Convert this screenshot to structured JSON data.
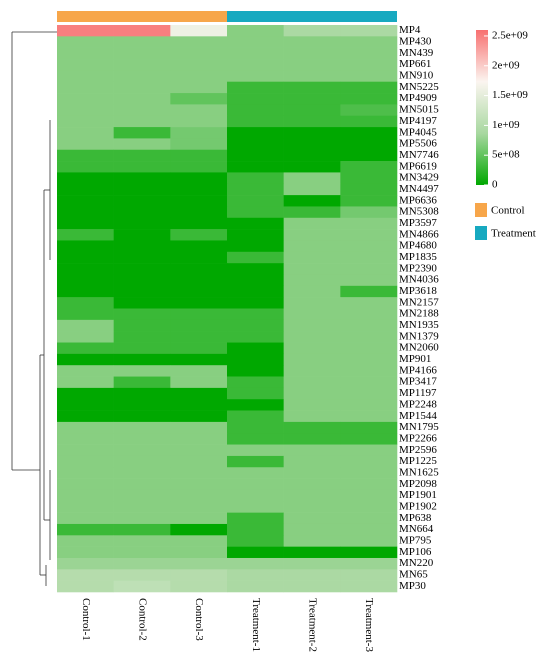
{
  "chart_data": {
    "type": "heatmap",
    "rows": [
      "MP4",
      "MP430",
      "MN439",
      "MP661",
      "MN910",
      "MN5225",
      "MP4909",
      "MN5015",
      "MP4197",
      "MP4045",
      "MP5506",
      "MN7746",
      "MP6619",
      "MN3429",
      "MN4497",
      "MP6636",
      "MN5308",
      "MP3597",
      "MN4866",
      "MP4680",
      "MP1835",
      "MP2390",
      "MN4036",
      "MP3618",
      "MN2157",
      "MN2188",
      "MN1935",
      "MN1379",
      "MN2060",
      "MP901",
      "MP4166",
      "MP3417",
      "MP1197",
      "MP2248",
      "MP1544",
      "MN1795",
      "MP2266",
      "MP2596",
      "MP1225",
      "MN1625",
      "MP2098",
      "MP1901",
      "MP1902",
      "MP638",
      "MN664",
      "MP795",
      "MP106",
      "MN220",
      "MN65",
      "MP30"
    ],
    "columns": [
      "Control-1",
      "Control-2",
      "Control-3",
      "Treatment-1",
      "Treatment-2",
      "Treatment-3"
    ],
    "values": [
      [
        2500000000,
        2500000000,
        1600000000,
        700000000,
        900000000,
        900000000
      ],
      [
        700000000,
        700000000,
        700000000,
        700000000,
        700000000,
        700000000
      ],
      [
        700000000,
        700000000,
        700000000,
        700000000,
        700000000,
        700000000
      ],
      [
        700000000,
        700000000,
        700000000,
        700000000,
        700000000,
        700000000
      ],
      [
        700000000,
        700000000,
        700000000,
        700000000,
        700000000,
        700000000
      ],
      [
        700000000,
        700000000,
        700000000,
        300000000,
        300000000,
        300000000
      ],
      [
        700000000,
        700000000,
        500000000,
        300000000,
        300000000,
        300000000
      ],
      [
        700000000,
        700000000,
        700000000,
        300000000,
        300000000,
        400000000
      ],
      [
        700000000,
        700000000,
        700000000,
        300000000,
        300000000,
        300000000
      ],
      [
        700000000,
        300000000,
        600000000,
        0,
        0,
        0
      ],
      [
        700000000,
        700000000,
        600000000,
        0,
        0,
        0
      ],
      [
        300000000,
        300000000,
        300000000,
        0,
        0,
        0
      ],
      [
        300000000,
        300000000,
        300000000,
        0,
        0,
        300000000
      ],
      [
        0,
        0,
        0,
        300000000,
        700000000,
        300000000
      ],
      [
        0,
        0,
        0,
        300000000,
        700000000,
        300000000
      ],
      [
        0,
        0,
        0,
        300000000,
        0,
        300000000
      ],
      [
        0,
        0,
        0,
        300000000,
        300000000,
        600000000
      ],
      [
        0,
        0,
        0,
        0,
        700000000,
        700000000
      ],
      [
        300000000,
        0,
        300000000,
        0,
        700000000,
        700000000
      ],
      [
        0,
        0,
        0,
        0,
        700000000,
        700000000
      ],
      [
        0,
        0,
        0,
        300000000,
        700000000,
        700000000
      ],
      [
        0,
        0,
        0,
        0,
        700000000,
        700000000
      ],
      [
        0,
        0,
        0,
        0,
        700000000,
        700000000
      ],
      [
        0,
        0,
        0,
        0,
        700000000,
        300000000
      ],
      [
        300000000,
        0,
        0,
        0,
        700000000,
        700000000
      ],
      [
        300000000,
        300000000,
        300000000,
        300000000,
        700000000,
        700000000
      ],
      [
        700000000,
        300000000,
        300000000,
        300000000,
        700000000,
        700000000
      ],
      [
        700000000,
        300000000,
        300000000,
        300000000,
        700000000,
        700000000
      ],
      [
        300000000,
        300000000,
        300000000,
        0,
        700000000,
        700000000
      ],
      [
        0,
        0,
        0,
        0,
        700000000,
        700000000
      ],
      [
        700000000,
        700000000,
        700000000,
        0,
        700000000,
        700000000
      ],
      [
        700000000,
        300000000,
        700000000,
        300000000,
        700000000,
        700000000
      ],
      [
        0,
        0,
        0,
        300000000,
        700000000,
        700000000
      ],
      [
        0,
        0,
        0,
        0,
        700000000,
        700000000
      ],
      [
        0,
        0,
        0,
        300000000,
        700000000,
        700000000
      ],
      [
        700000000,
        700000000,
        700000000,
        300000000,
        300000000,
        300000000
      ],
      [
        700000000,
        700000000,
        700000000,
        300000000,
        300000000,
        300000000
      ],
      [
        700000000,
        700000000,
        700000000,
        700000000,
        700000000,
        700000000
      ],
      [
        700000000,
        700000000,
        700000000,
        300000000,
        700000000,
        700000000
      ],
      [
        700000000,
        700000000,
        700000000,
        700000000,
        700000000,
        700000000
      ],
      [
        700000000,
        700000000,
        700000000,
        700000000,
        700000000,
        700000000
      ],
      [
        700000000,
        700000000,
        700000000,
        700000000,
        700000000,
        700000000
      ],
      [
        700000000,
        700000000,
        700000000,
        700000000,
        700000000,
        700000000
      ],
      [
        700000000,
        700000000,
        700000000,
        300000000,
        700000000,
        700000000
      ],
      [
        300000000,
        300000000,
        0,
        300000000,
        700000000,
        700000000
      ],
      [
        700000000,
        700000000,
        700000000,
        300000000,
        700000000,
        700000000
      ],
      [
        700000000,
        700000000,
        700000000,
        0,
        0,
        0
      ],
      [
        800000000,
        800000000,
        800000000,
        800000000,
        800000000,
        800000000
      ],
      [
        1000000000,
        1000000000,
        1000000000,
        900000000,
        900000000,
        900000000
      ],
      [
        1000000000,
        1100000000,
        1000000000,
        900000000,
        900000000,
        900000000
      ]
    ],
    "colorscale": [
      "#00a800",
      "#a8d8a0",
      "#fbf5f0",
      "#f87070"
    ],
    "zlim": [
      0,
      2600000000
    ],
    "zticks": [
      0,
      {
        "value": 500000000,
        "label": "5e+08"
      },
      {
        "value": 1000000000,
        "label": "1e+09"
      },
      {
        "value": 1500000000,
        "label": "1.5e+09"
      },
      {
        "value": 2000000000,
        "label": "2e+09"
      },
      {
        "value": 2500000000,
        "label": "2.5e+09"
      }
    ],
    "groups": [
      {
        "name": "Control",
        "color": "#f7a64a"
      },
      {
        "name": "Treatment",
        "color": "#17a9c0"
      }
    ]
  }
}
